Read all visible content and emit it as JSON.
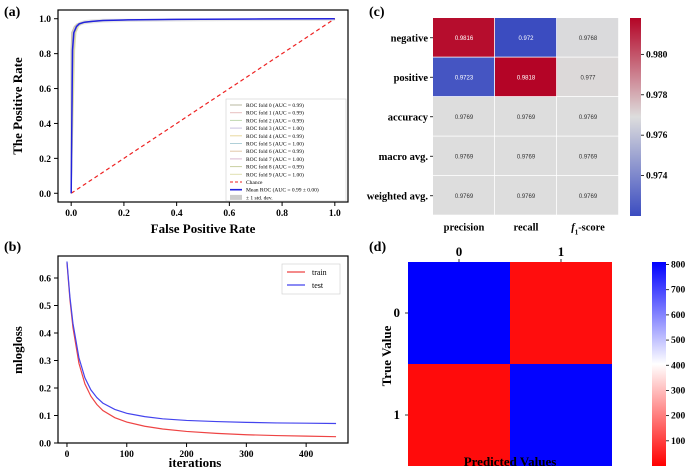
{
  "panels": {
    "a": "(a)",
    "b": "(b)",
    "c": "(c)",
    "d": "(d)"
  },
  "chart_data": [
    {
      "id": "a",
      "type": "line",
      "title": "",
      "xlabel": "False Positive Rate",
      "ylabel": "The Positive Rate",
      "xlim": [
        -0.05,
        1.05
      ],
      "ylim": [
        -0.05,
        1.05
      ],
      "xticks": [
        "0.0",
        "0.2",
        "0.4",
        "0.6",
        "0.8",
        "1.0"
      ],
      "yticks": [
        "0.0",
        "0.2",
        "0.4",
        "0.6",
        "0.8",
        "1.0"
      ],
      "legend_position": "lower-right",
      "folds": [
        {
          "name": "ROC fold 0 (AUC = 0.99)",
          "color": "#b8b8a0"
        },
        {
          "name": "ROC fold 1 (AUC = 0.99)",
          "color": "#e8c0c0"
        },
        {
          "name": "ROC fold 2 (AUC = 0.99)",
          "color": "#c0d8b0"
        },
        {
          "name": "ROC fold 3 (AUC = 1.00)",
          "color": "#c8c0e0"
        },
        {
          "name": "ROC fold 4 (AUC = 0.99)",
          "color": "#e8d8a0"
        },
        {
          "name": "ROC fold 5 (AUC = 1.00)",
          "color": "#b0d0d8"
        },
        {
          "name": "ROC fold 6 (AUC = 0.99)",
          "color": "#e0c8a8"
        },
        {
          "name": "ROC fold 7 (AUC = 1.00)",
          "color": "#d8b8d0"
        },
        {
          "name": "ROC fold 8 (AUC = 0.99)",
          "color": "#c8d0a0"
        },
        {
          "name": "ROC fold 9 (AUC = 1.00)",
          "color": "#e0e0b0"
        }
      ],
      "chance": {
        "name": "Chance",
        "color": "#ee2222",
        "x": [
          0,
          1
        ],
        "y": [
          0,
          1
        ]
      },
      "mean_roc": {
        "name": "Mean ROC (AUC = 0.99 ± 0.00)",
        "color": "#2222dd",
        "x": [
          0,
          0.005,
          0.01,
          0.02,
          0.03,
          0.05,
          0.08,
          0.12,
          0.2,
          0.4,
          0.6,
          0.8,
          1.0
        ],
        "y": [
          0,
          0.82,
          0.92,
          0.955,
          0.97,
          0.98,
          0.985,
          0.99,
          0.993,
          0.996,
          0.998,
          0.999,
          1.0
        ]
      },
      "std_band": {
        "name": "± 1 std. dev.",
        "color": "#cccccc"
      }
    },
    {
      "id": "b",
      "type": "line",
      "title": "",
      "xlabel": "iterations",
      "ylabel": "mlogloss",
      "xlim": [
        -15,
        470
      ],
      "ylim": [
        0.0,
        0.68
      ],
      "xticks": [
        0,
        100,
        200,
        300,
        400
      ],
      "yticks": [
        "0.0",
        "0.1",
        "0.2",
        "0.3",
        "0.4",
        "0.5",
        "0.6"
      ],
      "legend_position": "upper-right",
      "series": [
        {
          "name": "train",
          "color": "#ee4444",
          "x": [
            0,
            5,
            10,
            20,
            30,
            40,
            50,
            60,
            80,
            100,
            130,
            160,
            200,
            250,
            300,
            350,
            400,
            450
          ],
          "y": [
            0.655,
            0.52,
            0.42,
            0.29,
            0.215,
            0.17,
            0.14,
            0.118,
            0.092,
            0.076,
            0.061,
            0.051,
            0.042,
            0.035,
            0.03,
            0.027,
            0.025,
            0.023
          ]
        },
        {
          "name": "test",
          "color": "#4444ee",
          "x": [
            0,
            5,
            10,
            20,
            30,
            40,
            50,
            60,
            80,
            100,
            130,
            160,
            200,
            250,
            300,
            350,
            400,
            450
          ],
          "y": [
            0.66,
            0.53,
            0.435,
            0.31,
            0.237,
            0.193,
            0.165,
            0.145,
            0.122,
            0.108,
            0.096,
            0.088,
            0.082,
            0.078,
            0.075,
            0.073,
            0.072,
            0.071
          ]
        }
      ]
    },
    {
      "id": "c",
      "type": "heatmap",
      "title": "",
      "rows": [
        "negative",
        "positive",
        "accuracy",
        "macro avg.",
        "weighted avg."
      ],
      "cols": [
        "precision",
        "recall",
        "f1-score"
      ],
      "col_main": [
        "precision",
        "recall",
        "f"
      ],
      "col_sub": [
        "",
        "",
        "1"
      ],
      "col_suffix": [
        "",
        "",
        "-score"
      ],
      "values": [
        [
          0.9816,
          0.972,
          0.9768
        ],
        [
          0.9723,
          0.9818,
          0.977
        ],
        [
          0.9769,
          0.9769,
          0.9769
        ],
        [
          0.9769,
          0.9769,
          0.9769
        ],
        [
          0.9769,
          0.9769,
          0.9769
        ]
      ],
      "labels": [
        [
          "0.9816",
          "0.972",
          "0.9768"
        ],
        [
          "0.9723",
          "0.9818",
          "0.977"
        ],
        [
          "0.9769",
          "0.9769",
          "0.9769"
        ],
        [
          "0.9769",
          "0.9769",
          "0.9769"
        ],
        [
          "0.9769",
          "0.9769",
          "0.9769"
        ]
      ],
      "vmin": 0.972,
      "vmax": 0.9818,
      "colorbar_ticks": [
        0.974,
        0.976,
        0.978,
        0.98
      ],
      "colorbar_labels": [
        "0.974",
        "0.976",
        "0.978",
        "0.980"
      ],
      "colormap": "coolwarm"
    },
    {
      "id": "d",
      "type": "heatmap",
      "title": "",
      "xlabel": "Predicted Values",
      "ylabel": "True Value",
      "xticks": [
        "0",
        "1"
      ],
      "yticks": [
        "0",
        "1"
      ],
      "matrix": [
        [
          810,
          20
        ],
        [
          18,
          805
        ]
      ],
      "vmin": 0,
      "vmax": 810,
      "colorbar_ticks": [
        100,
        200,
        300,
        400,
        500,
        600,
        700,
        800
      ],
      "colorbar_labels": [
        "100",
        "200",
        "300",
        "400",
        "500",
        "600",
        "700",
        "800"
      ],
      "colormap": "bwr_r"
    }
  ]
}
